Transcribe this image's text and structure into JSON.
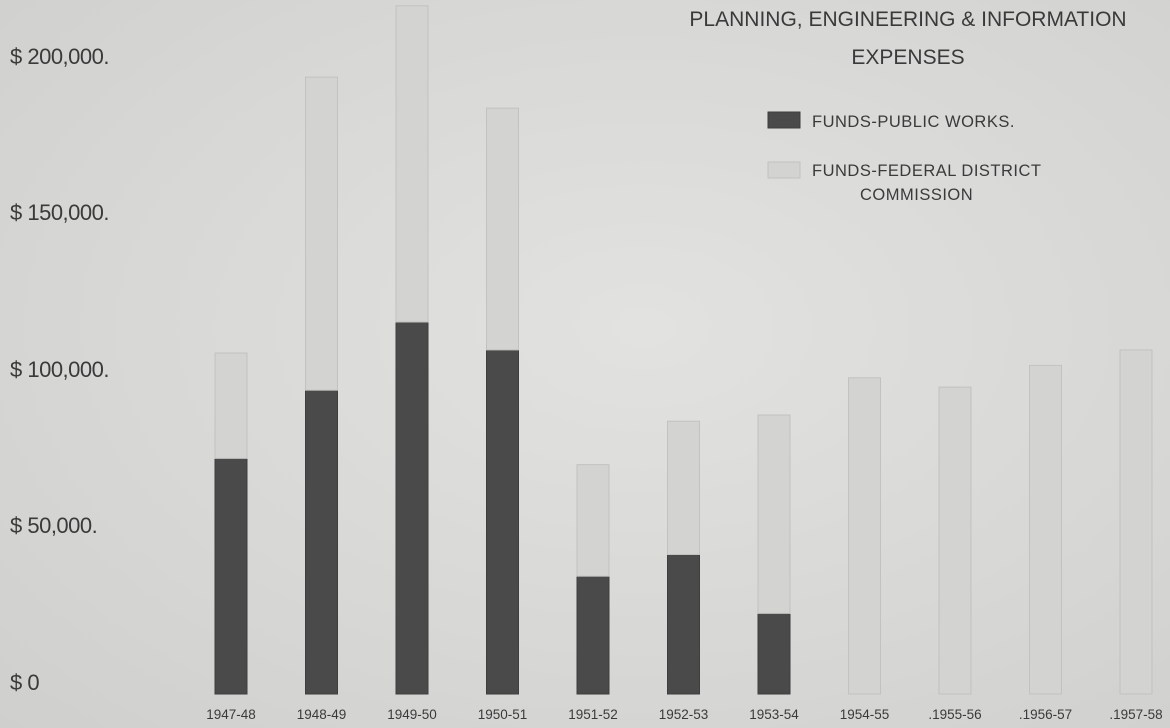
{
  "chart_data": {
    "type": "bar",
    "stacked": true,
    "title_lines": [
      "PLANNING, ENGINEERING & INFORMATION",
      "EXPENSES"
    ],
    "categories": [
      "1947-48",
      "1948-49",
      "1949-50",
      "1950-51",
      "1951-52",
      "1952-53",
      "1953-54",
      "1954-55",
      ".1955-56",
      ".1956-57",
      ".1957-58"
    ],
    "series": [
      {
        "name": "FUNDS-PUBLIC WORKS.",
        "color": "#4a4a4a",
        "values": [
          76000,
          98000,
          120000,
          111000,
          38000,
          45000,
          26000,
          0,
          0,
          0,
          0
        ]
      },
      {
        "name": "FUNDS-FEDERAL DISTRICT COMMISSION",
        "color": "#d3d3d1",
        "values": [
          34000,
          101000,
          102000,
          78000,
          36000,
          43000,
          64000,
          102000,
          99000,
          106000,
          111000
        ]
      }
    ],
    "legend_label_lines": [
      [
        "FUNDS-PUBLIC WORKS."
      ],
      [
        "FUNDS-FEDERAL DISTRICT",
        "COMMISSION"
      ]
    ],
    "legend_position": "top-right",
    "y_tick_labels": [
      "$ 0",
      "$ 50,000.",
      "$ 100,000.",
      "$ 150,000.",
      "$ 200,000."
    ],
    "y_tick_values": [
      0,
      50000,
      100000,
      150000,
      200000
    ],
    "ylim": [
      0,
      200000
    ],
    "grid": false
  }
}
